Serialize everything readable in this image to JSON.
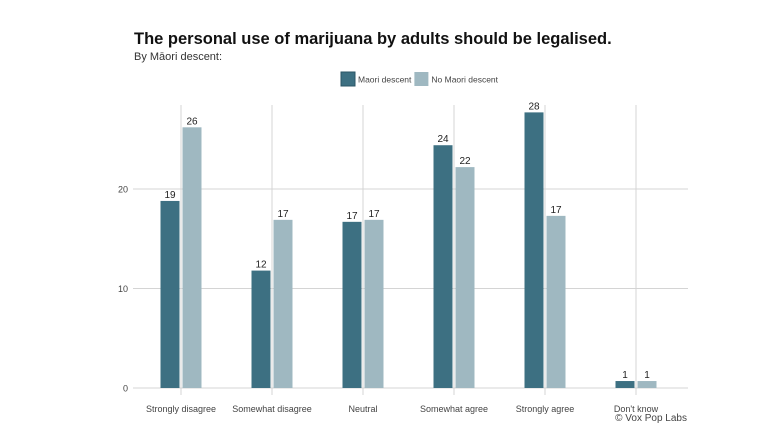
{
  "chart_data": {
    "type": "bar",
    "title": "The personal use of marijuana by adults should be legalised.",
    "subtitle": "By Māori descent:",
    "credit": "© Vox Pop Labs",
    "categories": [
      "Strongly disagree",
      "Somewhat disagree",
      "Neutral",
      "Somewhat agree",
      "Strongly agree",
      "Don't know"
    ],
    "series": [
      {
        "name": "Maori descent",
        "color": "#3d7082",
        "values": [
          18.8,
          11.8,
          16.7,
          24.4,
          27.7,
          0.7
        ],
        "labels": [
          "19",
          "12",
          "17",
          "24",
          "28",
          "1"
        ]
      },
      {
        "name": "No Maori descent",
        "color": "#9fb8c1",
        "values": [
          26.2,
          16.9,
          16.9,
          22.2,
          17.3,
          0.7
        ],
        "labels": [
          "26",
          "17",
          "17",
          "22",
          "17",
          "1"
        ]
      }
    ],
    "yticks": [
      0,
      10,
      20
    ],
    "ylim": [
      0,
      29
    ],
    "grid": true,
    "legend": "top-center"
  }
}
